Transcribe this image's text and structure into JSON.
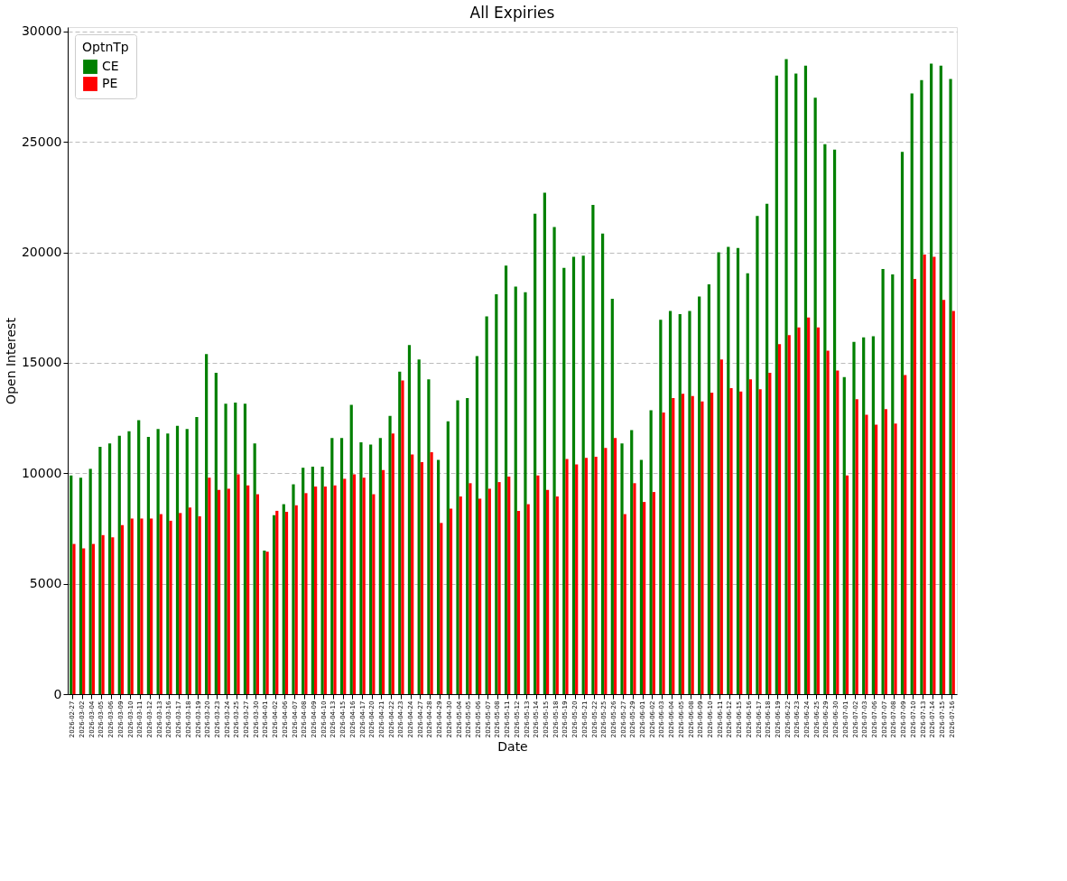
{
  "chart_data": {
    "type": "bar",
    "title": "All Expiries",
    "xlabel": "Date",
    "ylabel": "Open Interest",
    "legend_title": "OptnTp",
    "categories": [
      "2026-02-27",
      "2026-03-02",
      "2026-03-04",
      "2026-03-05",
      "2026-03-06",
      "2026-03-09",
      "2026-03-10",
      "2026-03-11",
      "2026-03-12",
      "2026-03-13",
      "2026-03-16",
      "2026-03-17",
      "2026-03-18",
      "2026-03-19",
      "2026-03-20",
      "2026-03-23",
      "2026-03-24",
      "2026-03-25",
      "2026-03-27",
      "2026-03-30",
      "2026-04-01",
      "2026-04-02",
      "2026-04-06",
      "2026-04-07",
      "2026-04-08",
      "2026-04-09",
      "2026-04-10",
      "2026-04-13",
      "2026-04-15",
      "2026-04-16",
      "2026-04-17",
      "2026-04-20",
      "2026-04-21",
      "2026-04-22",
      "2026-04-23",
      "2026-04-24",
      "2026-04-27",
      "2026-04-28",
      "2026-04-29",
      "2026-04-30",
      "2026-05-04",
      "2026-05-05",
      "2026-05-06",
      "2026-05-07",
      "2026-05-08",
      "2026-05-11",
      "2026-05-12",
      "2026-05-13",
      "2026-05-14",
      "2026-05-15",
      "2026-05-18",
      "2026-05-19",
      "2026-05-20",
      "2026-05-21",
      "2026-05-22",
      "2026-05-25",
      "2026-05-26",
      "2026-05-27",
      "2026-05-29",
      "2026-06-01",
      "2026-06-02",
      "2026-06-03",
      "2026-06-04",
      "2026-06-05",
      "2026-06-08",
      "2026-06-09",
      "2026-06-10",
      "2026-06-11",
      "2026-06-12",
      "2026-06-15",
      "2026-06-16",
      "2026-06-17",
      "2026-06-18",
      "2026-06-19",
      "2026-06-22",
      "2026-06-23",
      "2026-06-24",
      "2026-06-25",
      "2026-06-29",
      "2026-06-30",
      "2026-07-01",
      "2026-07-02",
      "2026-07-03",
      "2026-07-06",
      "2026-07-07",
      "2026-07-08",
      "2026-07-09",
      "2026-07-10",
      "2026-07-13",
      "2026-07-14",
      "2026-07-15",
      "2026-07-16"
    ],
    "series": [
      {
        "name": "CE",
        "color": "#008000",
        "values": [
          9900,
          9800,
          10200,
          11200,
          11350,
          11700,
          11900,
          12400,
          11650,
          12000,
          11800,
          12150,
          12000,
          12550,
          15400,
          14550,
          13150,
          13200,
          13150,
          11350,
          6500,
          8100,
          8600,
          9500,
          10250,
          10300,
          10300,
          11600,
          11600,
          13100,
          11400,
          11300,
          11600,
          12600,
          14600,
          15800,
          15150,
          14250,
          10600,
          12350,
          13300,
          13400,
          15300,
          17100,
          18100,
          19400,
          18450,
          18200,
          21750,
          22700,
          21150,
          19300,
          19800,
          19850,
          22150,
          20850,
          17900,
          11350,
          11950,
          10600,
          12850,
          16950,
          17350,
          17200,
          17350,
          18000,
          18550,
          20000,
          20250,
          20200,
          19050,
          21650,
          22200,
          28000,
          28750,
          28100,
          28450,
          27000,
          24900,
          24650,
          14350,
          15950,
          16150,
          16200,
          19250,
          19000,
          24550,
          27200,
          27800,
          28550,
          28450,
          27850
        ]
      },
      {
        "name": "PE",
        "color": "#ff0000",
        "values": [
          6800,
          6600,
          6800,
          7200,
          7100,
          7650,
          7950,
          7950,
          7950,
          8150,
          7850,
          8200,
          8450,
          8050,
          9800,
          9250,
          9300,
          9950,
          9450,
          9050,
          6450,
          8300,
          8250,
          8550,
          9100,
          9400,
          9400,
          9450,
          9750,
          9950,
          9800,
          9050,
          10150,
          11800,
          14200,
          10850,
          10500,
          10950,
          7750,
          8400,
          8950,
          9550,
          8850,
          9300,
          9600,
          9850,
          8300,
          8600,
          9900,
          9250,
          8950,
          10650,
          10400,
          10700,
          10750,
          11150,
          11600,
          8150,
          9550,
          8700,
          9150,
          12750,
          13400,
          13600,
          13500,
          13250,
          13650,
          15150,
          13850,
          13700,
          14250,
          13800,
          14550,
          15850,
          16250,
          16600,
          17050,
          16600,
          15550,
          14650,
          9900,
          13350,
          12650,
          12200,
          12900,
          12250,
          14450,
          18800,
          19900,
          19800,
          17850,
          17350
        ]
      }
    ],
    "ylim": [
      0,
      30200
    ],
    "yticks": [
      0,
      5000,
      10000,
      15000,
      20000,
      25000,
      30000
    ],
    "grid": "y",
    "legend": "top left"
  }
}
